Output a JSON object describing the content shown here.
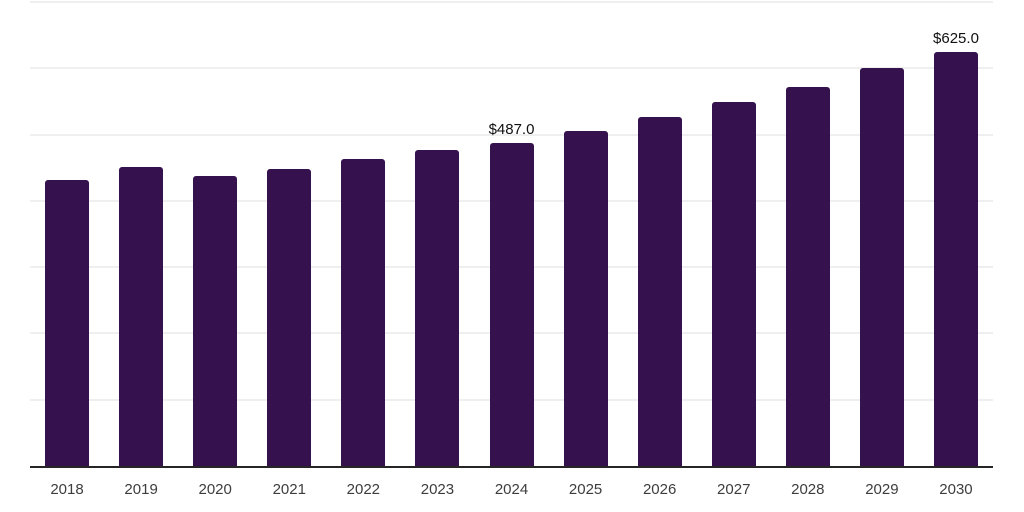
{
  "page": {
    "background": "#ffffff"
  },
  "chart_data": {
    "type": "bar",
    "title": "",
    "xlabel": "",
    "ylabel": "",
    "categories": [
      "2018",
      "2019",
      "2020",
      "2021",
      "2022",
      "2023",
      "2024",
      "2025",
      "2026",
      "2027",
      "2028",
      "2029",
      "2030"
    ],
    "values": [
      432,
      451,
      438,
      448,
      463,
      477,
      487,
      505,
      526,
      549,
      572,
      600,
      625
    ],
    "data_labels": {
      "2024": "$487.0",
      "2030": "$625.0"
    },
    "ylim": [
      0,
      700
    ],
    "gridline_step": 100,
    "grid": "horizontal-only",
    "y_axis_labels_visible": false,
    "legend": "none"
  },
  "style": {
    "bar_color": "#35124D",
    "gridline_color": "#efefef",
    "axis_line_color": "#262626",
    "tick_label_color": "#3d3d3d",
    "data_label_color": "#101010"
  }
}
